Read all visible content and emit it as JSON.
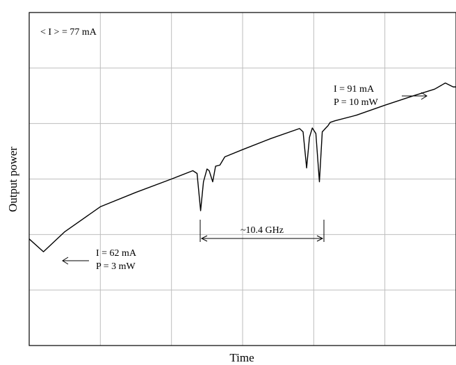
{
  "chart_data": {
    "type": "line",
    "xlabel": "Time",
    "ylabel": "Output power",
    "grid": true,
    "xlim": [
      0,
      6
    ],
    "ylim": [
      0,
      6
    ],
    "ticks_x": [
      1,
      2,
      3,
      4,
      5
    ],
    "ticks_y": [
      1,
      2,
      3,
      4,
      5
    ],
    "series": [
      {
        "x": [
          0,
          0.2,
          0.5,
          1.0,
          1.5,
          2.0,
          2.3,
          2.36,
          2.41,
          2.45,
          2.5,
          2.53,
          2.58,
          2.62,
          2.68,
          2.75,
          3.0,
          3.4,
          3.8,
          3.85,
          3.9,
          3.94,
          3.98,
          4.03,
          4.08,
          4.12,
          4.17,
          4.2,
          4.23,
          4.3,
          4.6,
          5.0,
          5.4,
          5.7,
          5.85,
          5.96,
          6.0
        ],
        "y": [
          1.92,
          1.69,
          2.05,
          2.5,
          2.76,
          3.0,
          3.15,
          3.1,
          2.43,
          2.95,
          3.18,
          3.15,
          2.95,
          3.23,
          3.25,
          3.4,
          3.53,
          3.73,
          3.91,
          3.85,
          3.2,
          3.75,
          3.92,
          3.82,
          2.95,
          3.85,
          3.92,
          3.96,
          4.02,
          4.05,
          4.15,
          4.33,
          4.5,
          4.62,
          4.73,
          4.66,
          4.66
        ]
      }
    ],
    "annotations": {
      "mean_current": "< I > = 77 mA",
      "start_current": "I = 62 mA",
      "start_power": "P = 3 mW",
      "end_current": "I = 91 mA",
      "end_power": "P = 10 mW",
      "spacing": "~10.4 GHz"
    }
  }
}
